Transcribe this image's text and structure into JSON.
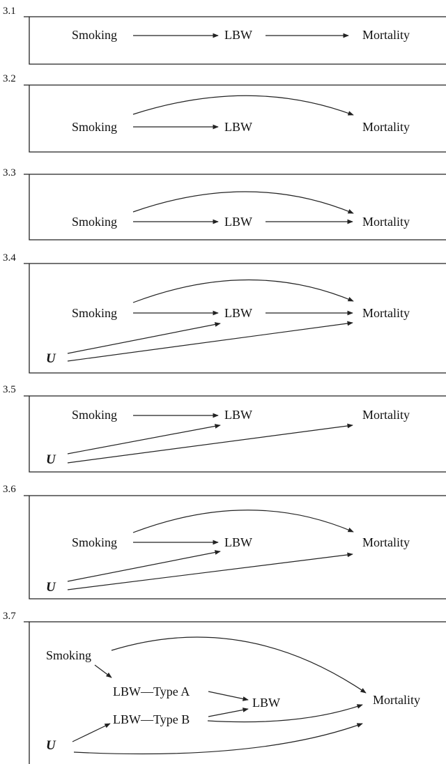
{
  "panels": [
    {
      "number": "3.1",
      "labels": {
        "smoking": "Smoking",
        "lbw": "LBW",
        "mortality": "Mortality"
      }
    },
    {
      "number": "3.2",
      "labels": {
        "smoking": "Smoking",
        "lbw": "LBW",
        "mortality": "Mortality"
      }
    },
    {
      "number": "3.3",
      "labels": {
        "smoking": "Smoking",
        "lbw": "LBW",
        "mortality": "Mortality"
      }
    },
    {
      "number": "3.4",
      "labels": {
        "smoking": "Smoking",
        "lbw": "LBW",
        "mortality": "Mortality",
        "u": "U"
      }
    },
    {
      "number": "3.5",
      "labels": {
        "smoking": "Smoking",
        "lbw": "LBW",
        "mortality": "Mortality",
        "u": "U"
      }
    },
    {
      "number": "3.6",
      "labels": {
        "smoking": "Smoking",
        "lbw": "LBW",
        "mortality": "Mortality",
        "u": "U"
      }
    },
    {
      "number": "3.7",
      "labels": {
        "smoking": "Smoking",
        "lbw_a": "LBW—Type A",
        "lbw_b": "LBW—Type B",
        "lbw": "LBW",
        "mortality": "Mortality",
        "u": "U"
      }
    }
  ]
}
